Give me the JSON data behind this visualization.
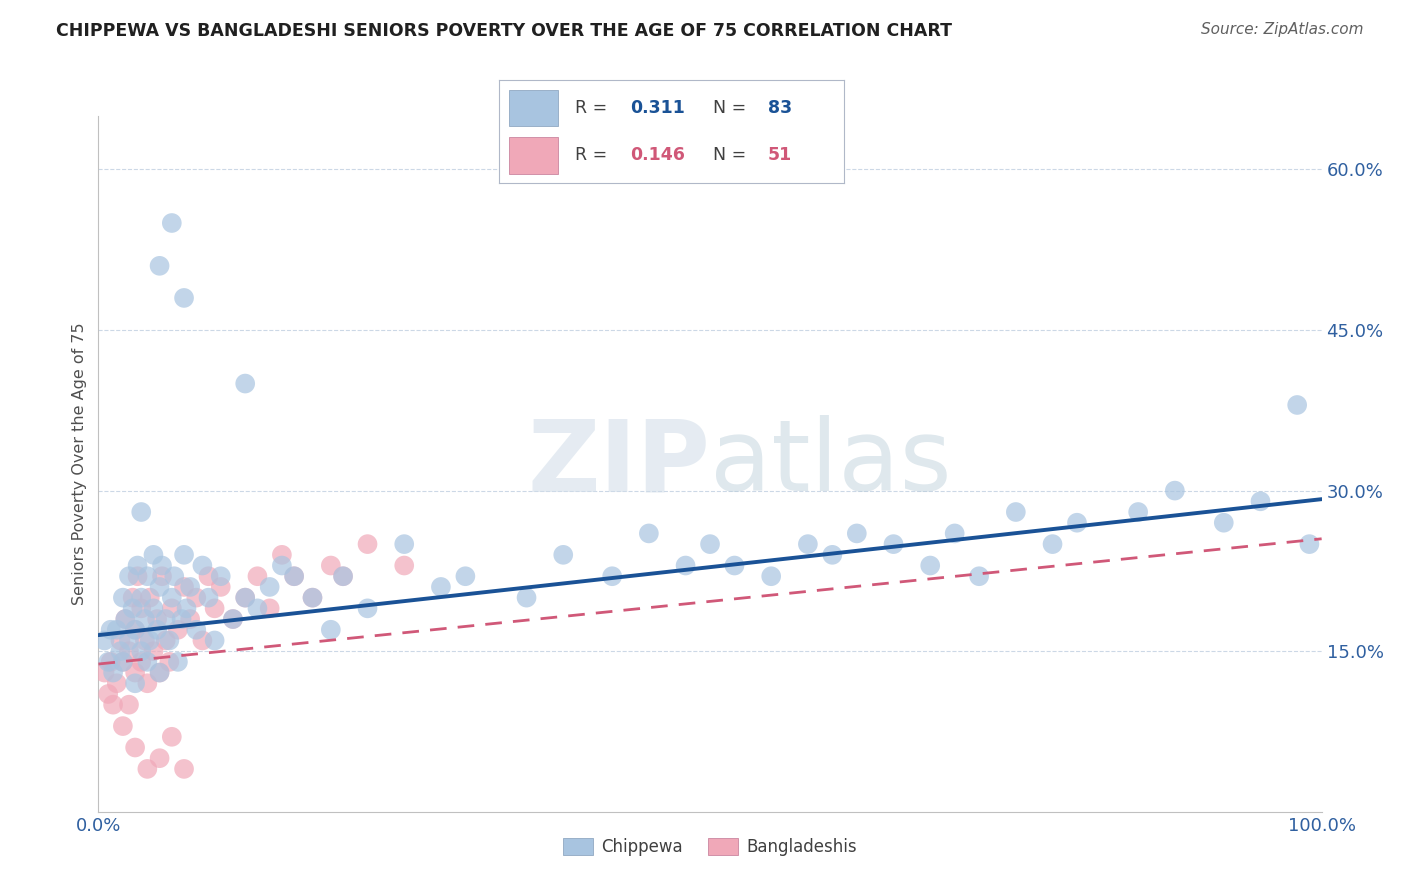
{
  "title": "CHIPPEWA VS BANGLADESHI SENIORS POVERTY OVER THE AGE OF 75 CORRELATION CHART",
  "source": "Source: ZipAtlas.com",
  "ylabel": "Seniors Poverty Over the Age of 75",
  "watermark": "ZIPatlas",
  "chippewa_R": 0.311,
  "chippewa_N": 83,
  "bangladeshi_R": 0.146,
  "bangladeshi_N": 51,
  "xlim": [
    0.0,
    1.0
  ],
  "ylim": [
    0.0,
    0.65
  ],
  "yticks": [
    0.15,
    0.3,
    0.45,
    0.6
  ],
  "yticklabels": [
    "15.0%",
    "30.0%",
    "45.0%",
    "60.0%"
  ],
  "chippewa_color": "#a8c4e0",
  "bangladeshi_color": "#f0a8b8",
  "chippewa_line_color": "#1a5296",
  "bangladeshi_line_color": "#d05878",
  "grid_color": "#c0cfe0",
  "title_color": "#202020",
  "axis_label_color": "#3060a0",
  "chippewa_x": [
    0.005,
    0.008,
    0.01,
    0.012,
    0.015,
    0.018,
    0.02,
    0.02,
    0.022,
    0.025,
    0.025,
    0.028,
    0.03,
    0.03,
    0.032,
    0.035,
    0.035,
    0.038,
    0.04,
    0.04,
    0.042,
    0.045,
    0.045,
    0.048,
    0.05,
    0.05,
    0.052,
    0.055,
    0.058,
    0.06,
    0.062,
    0.065,
    0.068,
    0.07,
    0.072,
    0.075,
    0.08,
    0.085,
    0.09,
    0.095,
    0.1,
    0.11,
    0.12,
    0.13,
    0.14,
    0.15,
    0.16,
    0.175,
    0.19,
    0.2,
    0.22,
    0.25,
    0.28,
    0.3,
    0.35,
    0.38,
    0.42,
    0.45,
    0.48,
    0.5,
    0.52,
    0.55,
    0.58,
    0.6,
    0.62,
    0.65,
    0.68,
    0.7,
    0.72,
    0.75,
    0.78,
    0.8,
    0.85,
    0.88,
    0.92,
    0.95,
    0.98,
    0.99,
    0.05,
    0.07,
    0.12,
    0.06,
    0.035
  ],
  "chippewa_y": [
    0.16,
    0.14,
    0.17,
    0.13,
    0.17,
    0.15,
    0.14,
    0.2,
    0.18,
    0.16,
    0.22,
    0.19,
    0.12,
    0.17,
    0.23,
    0.15,
    0.2,
    0.18,
    0.14,
    0.22,
    0.16,
    0.19,
    0.24,
    0.17,
    0.13,
    0.21,
    0.23,
    0.18,
    0.16,
    0.2,
    0.22,
    0.14,
    0.18,
    0.24,
    0.19,
    0.21,
    0.17,
    0.23,
    0.2,
    0.16,
    0.22,
    0.18,
    0.2,
    0.19,
    0.21,
    0.23,
    0.22,
    0.2,
    0.17,
    0.22,
    0.19,
    0.25,
    0.21,
    0.22,
    0.2,
    0.24,
    0.22,
    0.26,
    0.23,
    0.25,
    0.23,
    0.22,
    0.25,
    0.24,
    0.26,
    0.25,
    0.23,
    0.26,
    0.22,
    0.28,
    0.25,
    0.27,
    0.28,
    0.3,
    0.27,
    0.29,
    0.38,
    0.25,
    0.51,
    0.48,
    0.4,
    0.55,
    0.28
  ],
  "bangladeshi_x": [
    0.005,
    0.008,
    0.01,
    0.012,
    0.015,
    0.018,
    0.02,
    0.02,
    0.022,
    0.025,
    0.025,
    0.028,
    0.03,
    0.03,
    0.032,
    0.035,
    0.035,
    0.038,
    0.04,
    0.042,
    0.045,
    0.048,
    0.05,
    0.052,
    0.055,
    0.058,
    0.06,
    0.065,
    0.07,
    0.075,
    0.08,
    0.085,
    0.09,
    0.095,
    0.1,
    0.11,
    0.12,
    0.13,
    0.14,
    0.15,
    0.16,
    0.175,
    0.19,
    0.2,
    0.22,
    0.25,
    0.03,
    0.04,
    0.05,
    0.06,
    0.07
  ],
  "bangladeshi_y": [
    0.13,
    0.11,
    0.14,
    0.1,
    0.12,
    0.16,
    0.14,
    0.08,
    0.18,
    0.15,
    0.1,
    0.2,
    0.13,
    0.17,
    0.22,
    0.14,
    0.19,
    0.16,
    0.12,
    0.2,
    0.15,
    0.18,
    0.13,
    0.22,
    0.16,
    0.14,
    0.19,
    0.17,
    0.21,
    0.18,
    0.2,
    0.16,
    0.22,
    0.19,
    0.21,
    0.18,
    0.2,
    0.22,
    0.19,
    0.24,
    0.22,
    0.2,
    0.23,
    0.22,
    0.25,
    0.23,
    0.06,
    0.04,
    0.05,
    0.07,
    0.04
  ],
  "background_color": "#ffffff"
}
